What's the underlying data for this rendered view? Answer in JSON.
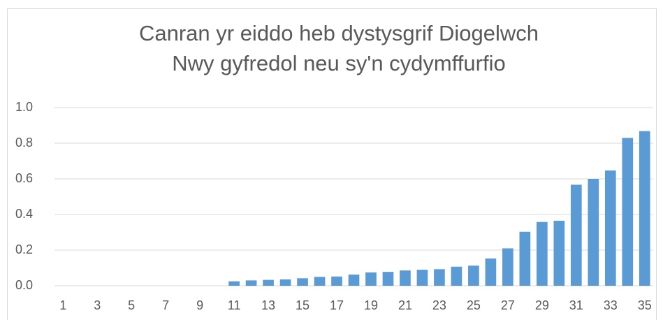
{
  "chart_data": {
    "type": "bar",
    "title": [
      "Canran yr eiddo heb dystysgrif Diogelwch",
      "Nwy gyfredol neu sy'n cydymffurfio"
    ],
    "categories": [
      "1",
      null,
      "3",
      null,
      "5",
      null,
      "7",
      null,
      "9",
      null,
      "11",
      null,
      "13",
      null,
      "15",
      null,
      "17",
      null,
      "19",
      null,
      "21",
      null,
      "23",
      null,
      "25",
      null,
      "27",
      null,
      "29",
      null,
      "31",
      null,
      "33",
      null,
      "35"
    ],
    "values": [
      0,
      0,
      0,
      0,
      0,
      0,
      0,
      0,
      0,
      0,
      0.025,
      0.03,
      0.033,
      0.036,
      0.042,
      0.05,
      0.052,
      0.063,
      0.075,
      0.078,
      0.086,
      0.09,
      0.093,
      0.107,
      0.113,
      0.153,
      0.21,
      0.303,
      0.358,
      0.365,
      0.567,
      0.6,
      0.647,
      0.83,
      0.868
    ],
    "color": "#5b9bd5",
    "ylim": [
      0,
      1
    ],
    "yticks": [
      {
        "value": 0,
        "label": "0.0"
      },
      0.2,
      0.4,
      0.6,
      0.8,
      {
        "value": 1,
        "label": "1.0"
      }
    ],
    "grid": true
  }
}
